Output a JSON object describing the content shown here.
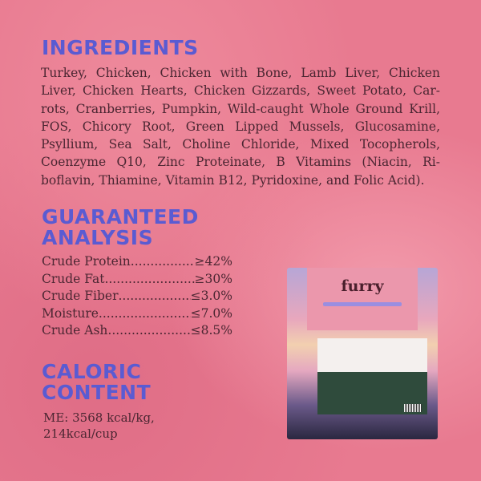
{
  "ingredients": {
    "title": "INGREDIENTS",
    "text": "Turkey, Chicken, Chicken with Bone, Lamb Liver, Chicken Liver, Chicken Hearts, Chicken Gizzards, Sweet Potato, Car­rots, Cranberries, Pumpkin, Wild-caught Whole Ground Krill, FOS, Chicory Root, Green Lipped Mussels, Glucos­amine, Psyllium, Sea Salt, Choline Chloride, Mixed Tocoph­erols, Coenzyme Q10, Zinc Proteinate, B Vitamins (Niacin, Ri­boflavin, Thiamine, Vitamin B12, Pyridoxine, and Folic Acid)."
  },
  "analysis": {
    "title_line1": "GUARANTEED",
    "title_line2": "ANALYSIS",
    "rows": [
      {
        "label": "Crude Protein",
        "value": "≥42%"
      },
      {
        "label": "Crude Fat",
        "value": "≥30%"
      },
      {
        "label": "Crude Fiber",
        "value": "≤3.0%"
      },
      {
        "label": "Moisture",
        "value": "≤7.0%"
      },
      {
        "label": "Crude Ash",
        "value": "≤8.5%"
      }
    ]
  },
  "caloric": {
    "title_line1": "CALORIC",
    "title_line2": "CONTENT",
    "line1": "ME: 3568 kcal/kg,",
    "line2": "214kcal/cup"
  },
  "product": {
    "brand": "furry"
  },
  "colors": {
    "background": "#e87a90",
    "heading": "#5a5bd2",
    "text": "#4b2632"
  }
}
